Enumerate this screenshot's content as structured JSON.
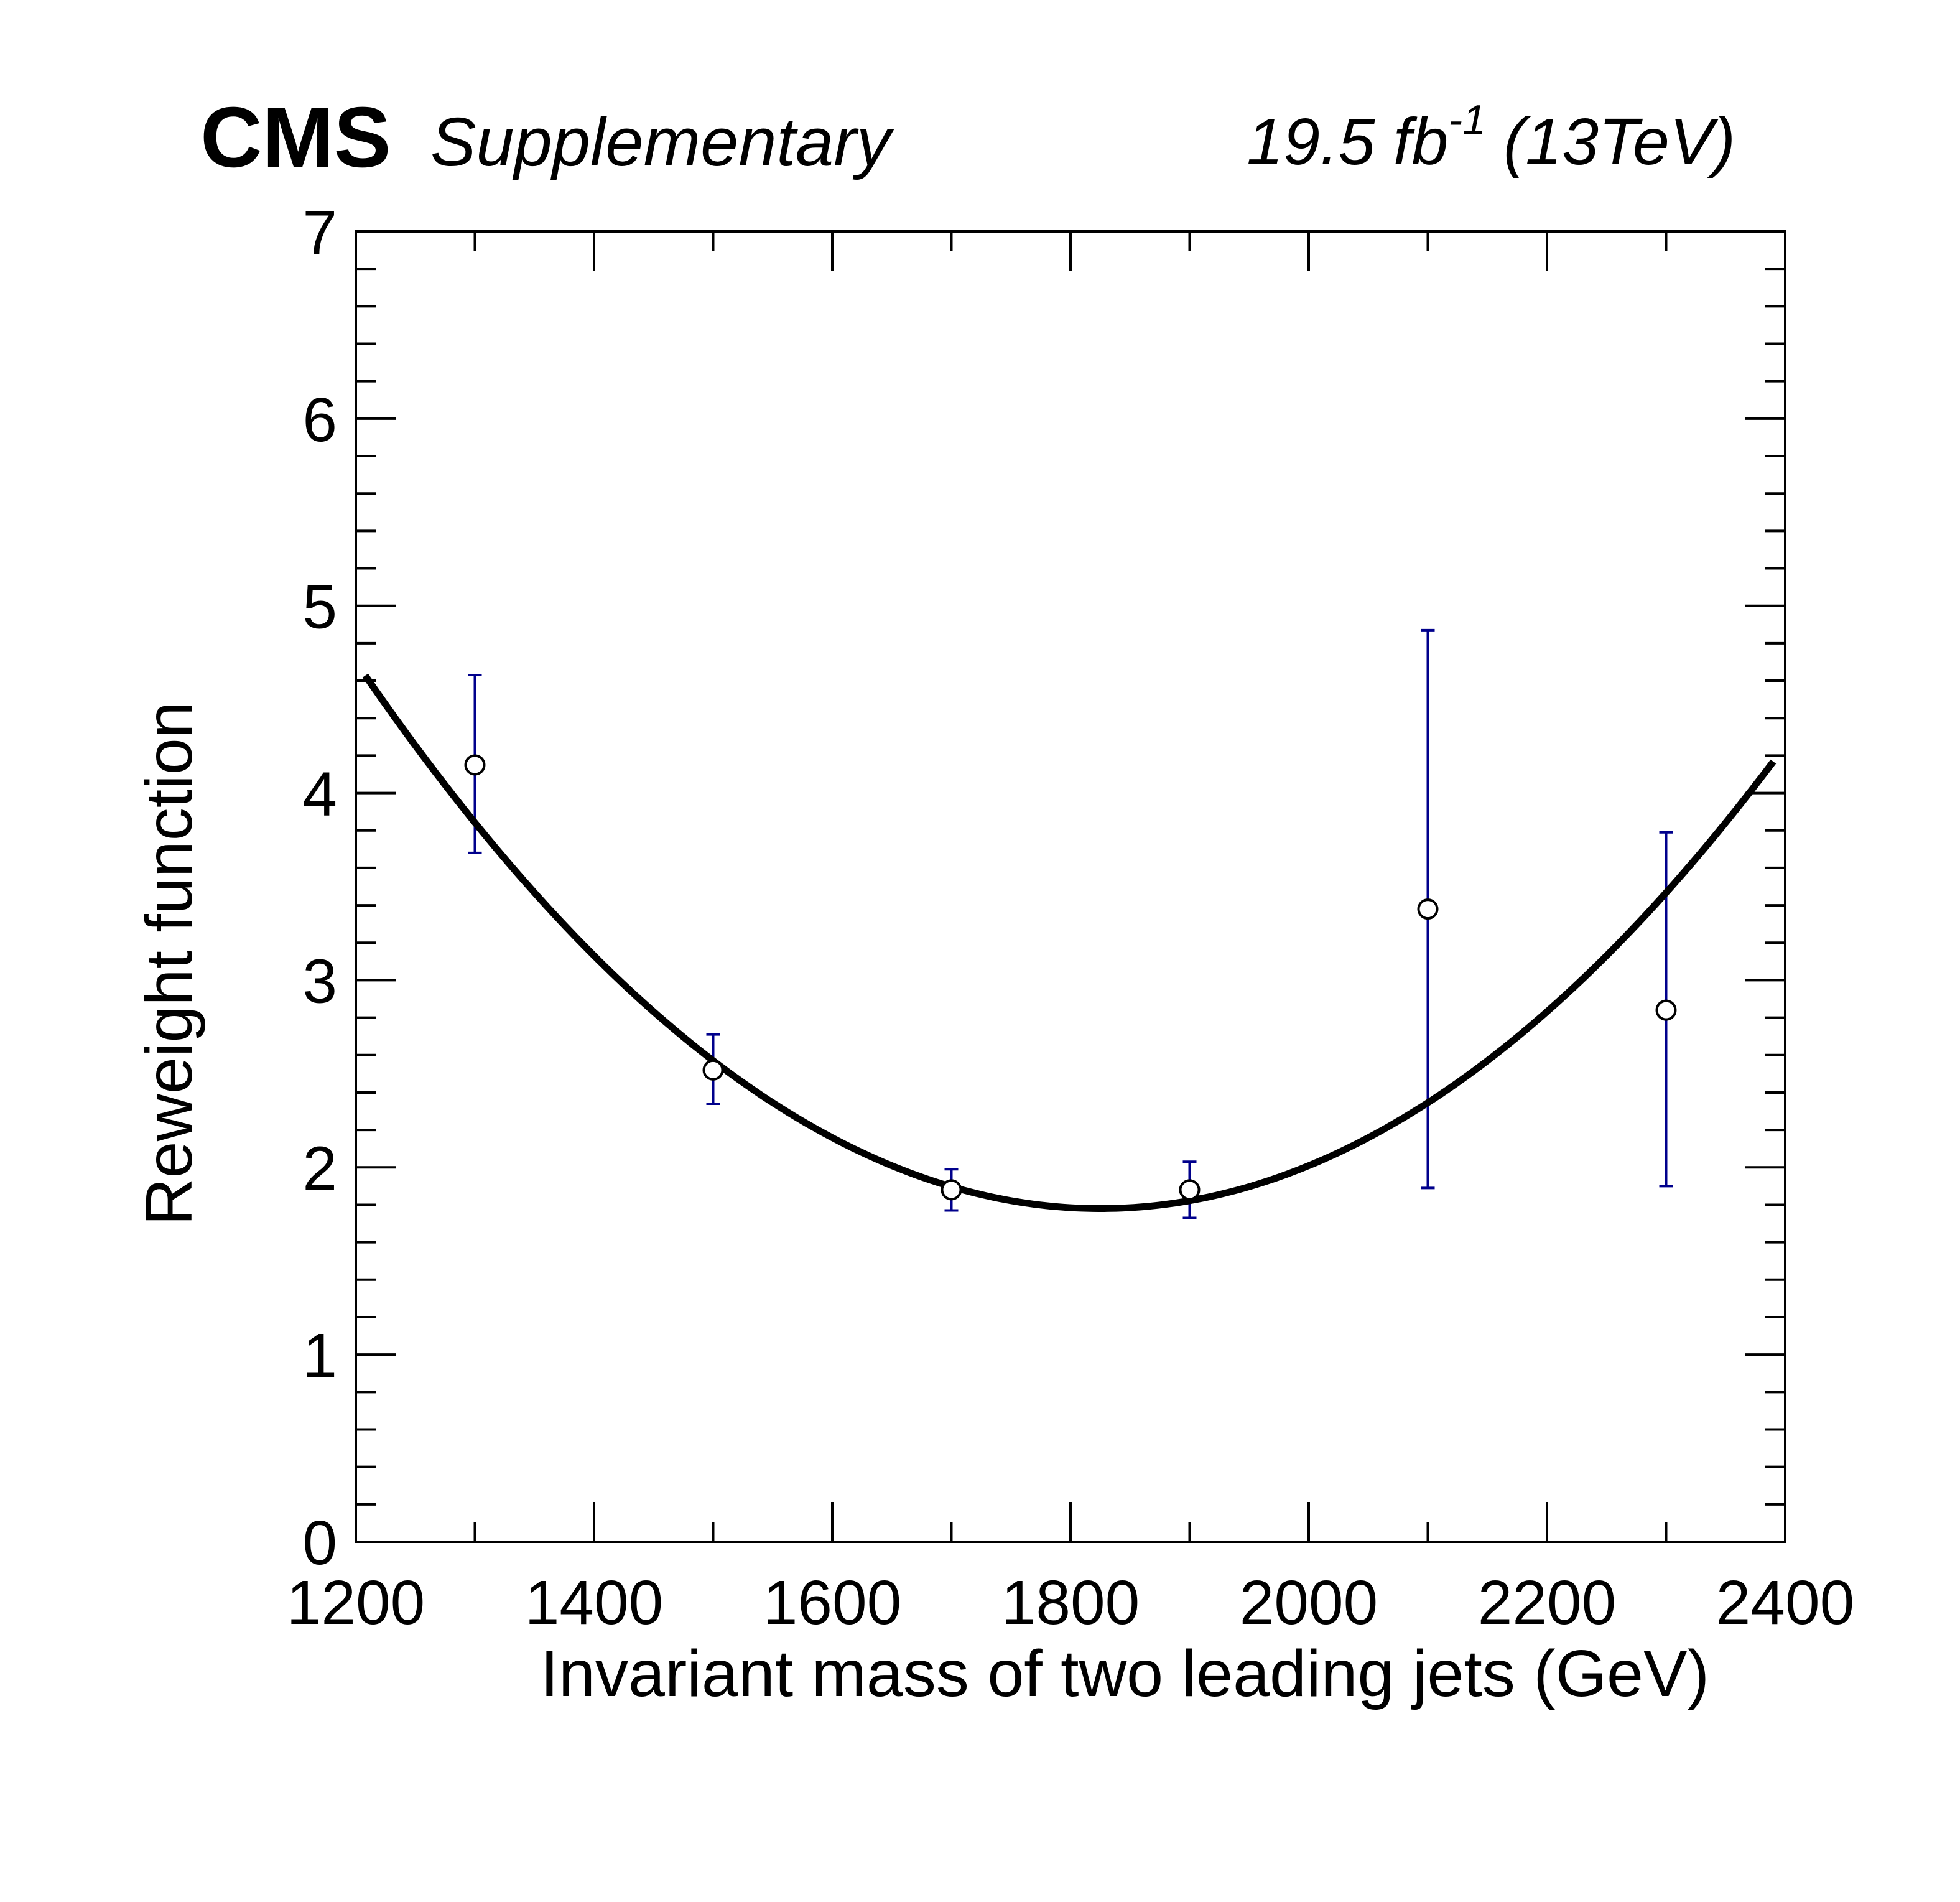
{
  "header": {
    "experiment": "CMS",
    "tag": "Supplementary",
    "lumi_text": "19.5 fb",
    "lumi_exp": "-1",
    "energy": "(13TeV)"
  },
  "colors": {
    "fit": "#000000",
    "errorbar": "#00008c",
    "marker": "#000000",
    "frame": "#000000"
  },
  "chart_data": {
    "type": "scatter",
    "xlabel": "Invariant mass of two leading jets (GeV)",
    "ylabel": "Reweight function",
    "xlim": [
      1200,
      2400
    ],
    "ylim": [
      0,
      7
    ],
    "x_ticks": [
      1200,
      1400,
      1600,
      1800,
      2000,
      2200,
      2400
    ],
    "y_ticks": [
      0,
      1,
      2,
      3,
      4,
      5,
      6,
      7
    ],
    "grid": false,
    "points": [
      {
        "x": 1300,
        "y": 4.15,
        "err_low": 0.47,
        "err_high": 0.48
      },
      {
        "x": 1500,
        "y": 2.52,
        "err_low": 0.18,
        "err_high": 0.19
      },
      {
        "x": 1700,
        "y": 1.88,
        "err_low": 0.11,
        "err_high": 0.11
      },
      {
        "x": 1900,
        "y": 1.88,
        "err_low": 0.15,
        "err_high": 0.15
      },
      {
        "x": 2100,
        "y": 3.38,
        "err_low": 1.49,
        "err_high": 1.49
      },
      {
        "x": 2300,
        "y": 2.84,
        "err_low": 0.94,
        "err_high": 0.95
      }
    ],
    "fit": {
      "type": "quadratic",
      "vertex_x": 1825,
      "vertex_y": 1.78,
      "curvature": 7.48e-06,
      "x_range": [
        1208,
        2390
      ]
    }
  }
}
